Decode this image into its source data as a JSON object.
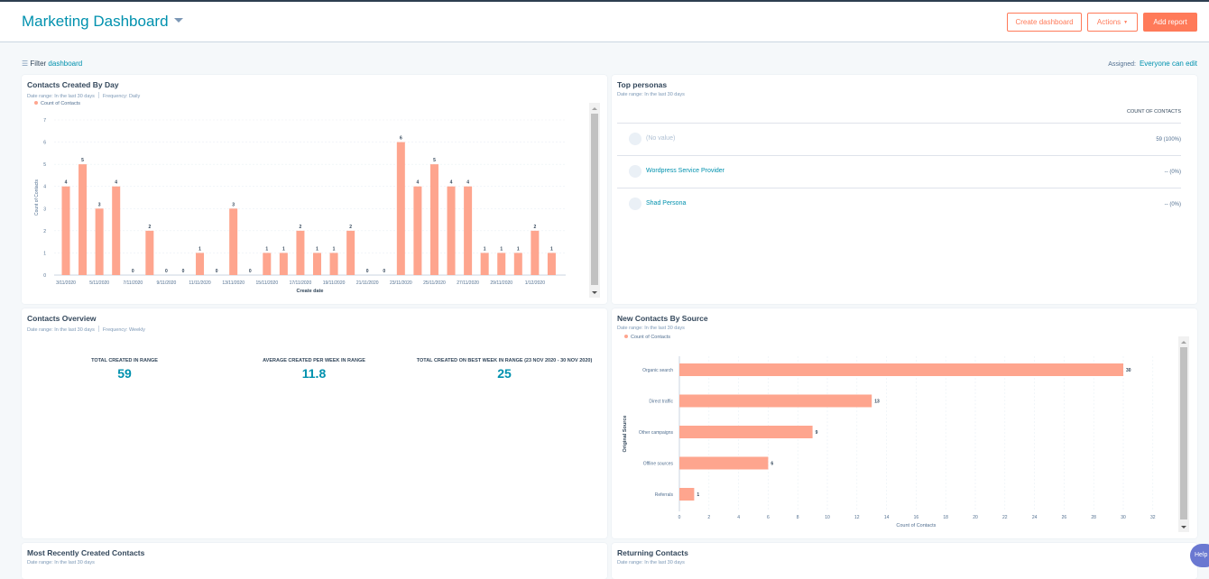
{
  "header": {
    "title": "Marketing Dashboard",
    "create_dashboard": "Create dashboard",
    "actions": "Actions",
    "add_report": "Add report"
  },
  "filter": {
    "prefix": "Filter",
    "link": "dashboard"
  },
  "assigned": {
    "label": "Assigned:",
    "value": "Everyone can edit"
  },
  "colors": {
    "accent": "#0091ae",
    "bar": "#fea58e",
    "button": "#ff7a59"
  },
  "contacts_by_day": {
    "title": "Contacts Created By Day",
    "date_range": "Date range: In the last 30 days",
    "frequency": "Frequency: Daily",
    "legend": "Count of Contacts"
  },
  "top_personas": {
    "title": "Top personas",
    "date_range": "Date range: In the last 30 days",
    "column": "COUNT OF CONTACTS",
    "rows": [
      {
        "name": "(No value)",
        "count": "59 (100%)"
      },
      {
        "name": "Wordpress Service Provider",
        "count": "-- (0%)"
      },
      {
        "name": "Shad Persona",
        "count": "-- (0%)"
      }
    ]
  },
  "contacts_overview": {
    "title": "Contacts Overview",
    "date_range": "Date range: In the last 30 days",
    "frequency": "Frequency: Weekly",
    "kpis": [
      {
        "label": "TOTAL CREATED IN RANGE",
        "value": "59"
      },
      {
        "label": "AVERAGE CREATED PER WEEK IN RANGE",
        "value": "11.8"
      },
      {
        "label": "TOTAL CREATED ON BEST WEEK IN RANGE (23 NOV 2020 - 30 NOV 2020)",
        "value": "25"
      }
    ]
  },
  "new_by_source": {
    "title": "New Contacts By Source",
    "date_range": "Date range: In the last 30 days",
    "legend": "Count of Contacts"
  },
  "recent_contacts": {
    "title": "Most Recently Created Contacts",
    "date_range": "Date range: In the last 30 days"
  },
  "returning_contacts": {
    "title": "Returning Contacts",
    "date_range": "Date range: In the last 30 days"
  },
  "help": "Help",
  "chart_data": [
    {
      "type": "bar",
      "xlabel": "Create date",
      "ylabel": "Count of Contacts",
      "ylim": [
        0,
        7
      ],
      "grid": true,
      "legend": "top-left",
      "categories": [
        "3/11/2020",
        "4/11/2020",
        "5/11/2020",
        "6/11/2020",
        "7/11/2020",
        "8/11/2020",
        "9/11/2020",
        "10/11/2020",
        "11/11/2020",
        "12/11/2020",
        "13/11/2020",
        "14/11/2020",
        "15/11/2020",
        "16/11/2020",
        "17/11/2020",
        "18/11/2020",
        "19/11/2020",
        "20/11/2020",
        "21/11/2020",
        "22/11/2020",
        "23/11/2020",
        "24/11/2020",
        "25/11/2020",
        "26/11/2020",
        "27/11/2020",
        "28/11/2020",
        "29/11/2020",
        "30/11/2020",
        "1/12/2020",
        "2/12/2020"
      ],
      "series": [
        {
          "name": "Count of Contacts",
          "values": [
            4,
            5,
            3,
            4,
            0,
            2,
            0,
            0,
            1,
            0,
            3,
            0,
            1,
            1,
            2,
            1,
            1,
            2,
            0,
            0,
            6,
            4,
            5,
            4,
            4,
            1,
            1,
            1,
            2,
            1
          ]
        }
      ]
    },
    {
      "type": "bar",
      "orientation": "horizontal",
      "xlabel": "Count of Contacts",
      "ylabel": "Original Source",
      "xlim": [
        0,
        32
      ],
      "grid": true,
      "legend": "top-left",
      "categories": [
        "Organic search",
        "Direct traffic",
        "Other campaigns",
        "Offline sources",
        "Referrals"
      ],
      "series": [
        {
          "name": "Count of Contacts",
          "values": [
            30,
            13,
            9,
            6,
            1
          ]
        }
      ]
    }
  ]
}
